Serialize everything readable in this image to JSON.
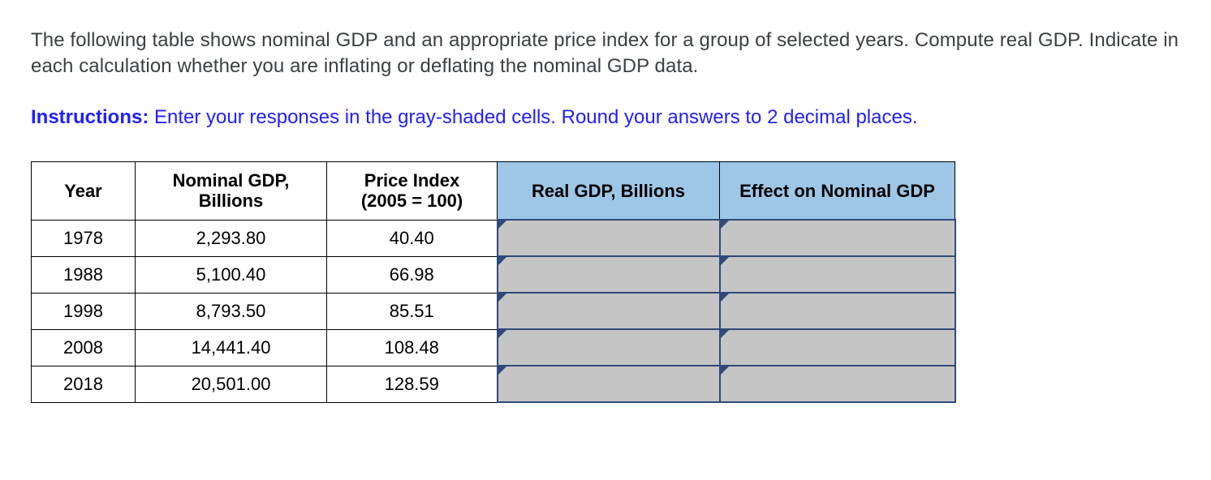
{
  "prompt_text": "The following table shows nominal GDP and an appropriate price index for a group of selected years. Compute real GDP. Indicate in each calculation whether you are inflating or deflating the nominal GDP data.",
  "instructions_label": "Instructions:",
  "instructions_text": " Enter your responses in the gray-shaded cells. Round your answers to 2 decimal places.",
  "table": {
    "header_bg": "#9ec7e7",
    "input_bg": "#c5c5c5",
    "input_border": "#2f4a7a",
    "columns": {
      "year": "Year",
      "nominal_line1": "Nominal GDP,",
      "nominal_line2": "Billions",
      "price_line1": "Price Index",
      "price_line2": "(2005 = 100)",
      "real": "Real GDP, Billions",
      "effect": "Effect on Nominal GDP"
    },
    "rows": [
      {
        "year": "1978",
        "nominal": "2,293.80",
        "price": "40.40",
        "real": "",
        "effect": ""
      },
      {
        "year": "1988",
        "nominal": "5,100.40",
        "price": "66.98",
        "real": "",
        "effect": ""
      },
      {
        "year": "1998",
        "nominal": "8,793.50",
        "price": "85.51",
        "real": "",
        "effect": ""
      },
      {
        "year": "2008",
        "nominal": "14,441.40",
        "price": "108.48",
        "real": "",
        "effect": ""
      },
      {
        "year": "2018",
        "nominal": "20,501.00",
        "price": "128.59",
        "real": "",
        "effect": ""
      }
    ]
  }
}
